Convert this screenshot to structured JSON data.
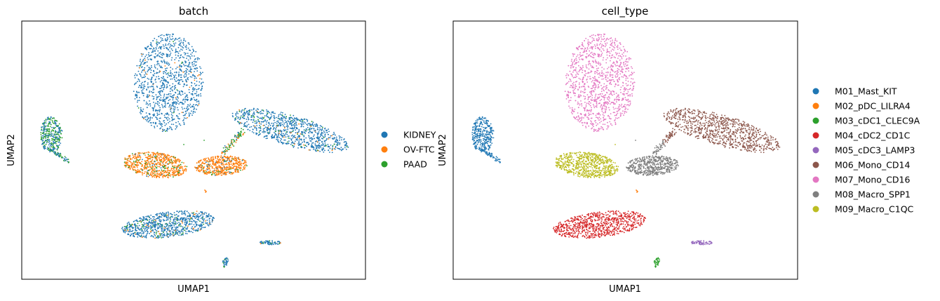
{
  "chart_data": [
    {
      "type": "scatter",
      "title": "batch",
      "xlabel": "UMAP1",
      "ylabel": "UMAP2",
      "grid": false,
      "ticks": false,
      "legend_position": "right",
      "legend": [
        {
          "name": "KIDNEY",
          "color": "#1f77b4"
        },
        {
          "name": "OV-FTC",
          "color": "#ff7f0e"
        },
        {
          "name": "PAAD",
          "color": "#2ca02c"
        }
      ]
    },
    {
      "type": "scatter",
      "title": "cell_type",
      "xlabel": "UMAP1",
      "ylabel": "UMAP2",
      "grid": false,
      "ticks": false,
      "legend_position": "right",
      "legend": [
        {
          "name": "M01_Mast_KIT",
          "color": "#1f77b4"
        },
        {
          "name": "M02_pDC_LILRA4",
          "color": "#ff7f0e"
        },
        {
          "name": "M03_cDC1_CLEC9A",
          "color": "#2ca02c"
        },
        {
          "name": "M04_cDC2_CD1C",
          "color": "#d62728"
        },
        {
          "name": "M05_cDC3_LAMP3",
          "color": "#9467bd"
        },
        {
          "name": "M06_Mono_CD14",
          "color": "#8c564b"
        },
        {
          "name": "M07_Mono_CD16",
          "color": "#e377c2"
        },
        {
          "name": "M08_Macro_SPP1",
          "color": "#7f7f7f"
        },
        {
          "name": "M09_Macro_C1QC",
          "color": "#bcbd22"
        }
      ]
    }
  ]
}
